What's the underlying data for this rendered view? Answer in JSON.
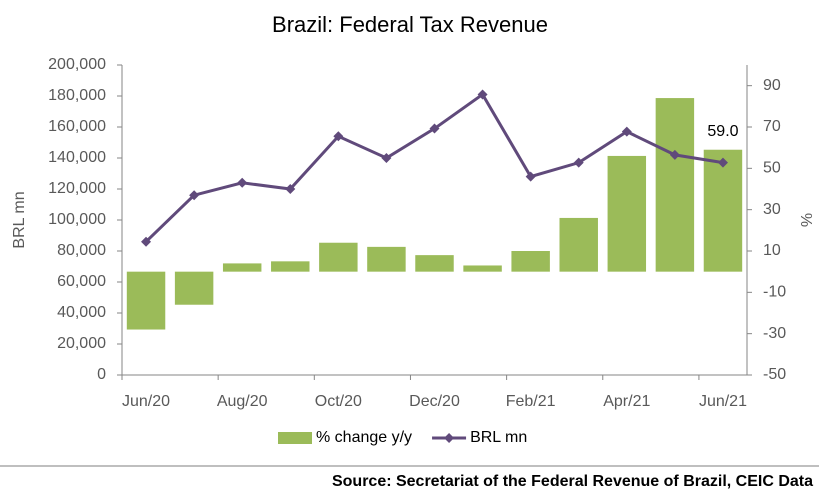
{
  "chart_data": {
    "type": "combo",
    "title": "Brazil:  Federal Tax Revenue",
    "ylabel": "BRL mn",
    "y2label": "%",
    "source": "Source: Secretariat of the Federal Revenue of Brazil, CEIC Data",
    "categories": [
      "Jun/20",
      null,
      "Aug/20",
      null,
      "Oct/20",
      null,
      "Dec/20",
      null,
      "Feb/21",
      null,
      "Apr/21",
      null,
      "Jun/21"
    ],
    "series": [
      {
        "name": "% change y/y",
        "type": "bar",
        "axis": "y2",
        "color": "#9bbb59",
        "values": [
          -28,
          -16,
          4,
          5,
          14,
          12,
          8,
          3,
          10,
          26,
          56,
          84,
          59
        ],
        "value_labels": [
          null,
          null,
          null,
          null,
          null,
          null,
          null,
          null,
          null,
          null,
          null,
          null,
          "59.0"
        ]
      },
      {
        "name": "BRL mn",
        "type": "line",
        "color": "#604a7b",
        "values": [
          86000,
          116000,
          124000,
          120000,
          154000,
          140000,
          159000,
          181000,
          128000,
          137000,
          157000,
          142000,
          137000
        ]
      }
    ],
    "ylim": [
      0,
      200000
    ],
    "yticks": [
      0,
      {
        "value": 20000,
        "label": "20,000"
      },
      {
        "value": 40000,
        "label": "40,000"
      },
      {
        "value": 60000,
        "label": "60,000"
      },
      {
        "value": 80000,
        "label": "80,000"
      },
      {
        "value": 100000,
        "label": "100,000"
      },
      {
        "value": 120000,
        "label": "120,000"
      },
      {
        "value": 140000,
        "label": "140,000"
      },
      {
        "value": 160000,
        "label": "160,000"
      },
      {
        "value": 180000,
        "label": "180,000"
      },
      {
        "value": 200000,
        "label": "200,000"
      }
    ],
    "y2lim": [
      -50,
      100
    ],
    "y2ticks": [
      -50,
      -30,
      -10,
      10,
      30,
      50,
      70,
      90
    ],
    "legend": "bottom"
  }
}
